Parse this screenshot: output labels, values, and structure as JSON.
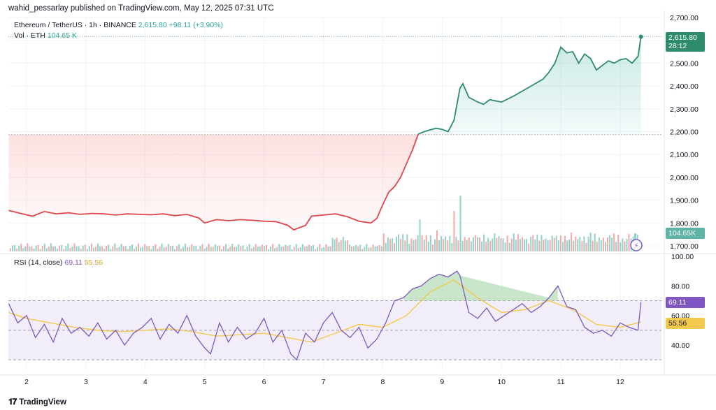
{
  "header": {
    "publisher": "wahid_pessarlay published on TradingView.com, May 12, 2025 07:31 UTC"
  },
  "legend": {
    "symbol": "Ethereum / TetherUS · 1h · BINANCE",
    "price": "2,615.80",
    "change": "+98.11 (+3.90%)",
    "vol_label": "Vol · ETH",
    "vol_value": "104.65 K",
    "rsi_label": "RSI (14, close)",
    "rsi_value": "69.11",
    "rsi_ma": "55.56"
  },
  "price_axis": [
    "2,700.00",
    "2,600.00",
    "2,500.00",
    "2,400.00",
    "2,300.00",
    "2,200.00",
    "2,100.00",
    "2,000.00",
    "1,900.00",
    "1,800.00",
    "1,700.00"
  ],
  "rsi_axis": [
    "100.00",
    "80.00",
    "60.00",
    "40.00"
  ],
  "x_axis": [
    "2",
    "3",
    "4",
    "5",
    "6",
    "7",
    "8",
    "9",
    "10",
    "11",
    "12"
  ],
  "tags": {
    "price": "2,615.80",
    "countdown": "28:12",
    "volume": "104.65K",
    "rsi": "69.11",
    "rsi_ma": "55.56"
  },
  "footer": {
    "brand": "TradingView"
  },
  "colors": {
    "up": "#26a69a",
    "down": "#ef5350",
    "rsi": "#7e57c2",
    "rsi_ma": "#f2c94c",
    "green_line": "#2e8b6e",
    "red_line": "#e0474c"
  },
  "chart_data": [
    {
      "type": "line",
      "title": "Ethereum / TetherUS · 1h · BINANCE",
      "x_ticks": [
        "2",
        "3",
        "4",
        "5",
        "6",
        "7",
        "8",
        "9",
        "10",
        "11",
        "12"
      ],
      "ylim": [
        1680,
        2720
      ],
      "baseline": 2187,
      "x": [
        1.7,
        1.9,
        2.1,
        2.3,
        2.5,
        2.7,
        2.9,
        3.1,
        3.3,
        3.5,
        3.7,
        3.9,
        4.1,
        4.3,
        4.5,
        4.7,
        4.9,
        5.0,
        5.2,
        5.4,
        5.6,
        5.8,
        6.0,
        6.2,
        6.4,
        6.5,
        6.7,
        6.8,
        7.0,
        7.2,
        7.4,
        7.6,
        7.8,
        7.9,
        8.0,
        8.1,
        8.2,
        8.3,
        8.4,
        8.5,
        8.6,
        8.7,
        8.8,
        8.9,
        9.0,
        9.1,
        9.2,
        9.3,
        9.35,
        9.45,
        9.6,
        9.7,
        9.8,
        10.0,
        10.2,
        10.3,
        10.5,
        10.7,
        10.8,
        10.9,
        11.0,
        11.1,
        11.2,
        11.3,
        11.4,
        11.5,
        11.6,
        11.7,
        11.8,
        11.9,
        12.0,
        12.1,
        12.2,
        12.3,
        12.35
      ],
      "y": [
        1855,
        1842,
        1830,
        1850,
        1840,
        1845,
        1838,
        1842,
        1840,
        1835,
        1840,
        1838,
        1836,
        1840,
        1832,
        1838,
        1822,
        1800,
        1815,
        1810,
        1815,
        1812,
        1808,
        1806,
        1790,
        1770,
        1790,
        1830,
        1835,
        1840,
        1828,
        1808,
        1800,
        1820,
        1880,
        1935,
        1960,
        2000,
        2060,
        2120,
        2190,
        2200,
        2208,
        2215,
        2210,
        2200,
        2250,
        2390,
        2410,
        2350,
        2330,
        2320,
        2340,
        2330,
        2355,
        2370,
        2400,
        2430,
        2460,
        2500,
        2570,
        2545,
        2550,
        2500,
        2540,
        2520,
        2470,
        2490,
        2510,
        2500,
        2515,
        2520,
        2500,
        2530,
        2615.8
      ],
      "volume": {
        "name": "Vol · ETH",
        "last": 104.65
      }
    },
    {
      "type": "line",
      "title": "RSI (14, close)",
      "ylim": [
        20,
        100
      ],
      "levels": [
        70,
        50,
        30
      ],
      "series": [
        {
          "name": "RSI",
          "x": [
            1.7,
            1.85,
            2.0,
            2.15,
            2.3,
            2.45,
            2.6,
            2.75,
            2.9,
            3.05,
            3.2,
            3.35,
            3.5,
            3.65,
            3.8,
            3.95,
            4.1,
            4.25,
            4.4,
            4.55,
            4.7,
            4.85,
            5.0,
            5.1,
            5.25,
            5.4,
            5.55,
            5.7,
            5.85,
            6.0,
            6.15,
            6.3,
            6.45,
            6.55,
            6.7,
            6.85,
            7.0,
            7.15,
            7.3,
            7.45,
            7.6,
            7.75,
            7.9,
            8.05,
            8.2,
            8.35,
            8.5,
            8.65,
            8.8,
            8.95,
            9.1,
            9.25,
            9.3,
            9.45,
            9.6,
            9.75,
            9.9,
            10.05,
            10.2,
            10.35,
            10.5,
            10.65,
            10.8,
            10.95,
            11.1,
            11.25,
            11.4,
            11.55,
            11.7,
            11.85,
            12.0,
            12.15,
            12.3,
            12.35
          ],
          "y": [
            68,
            55,
            60,
            45,
            54,
            42,
            58,
            48,
            52,
            46,
            55,
            44,
            50,
            40,
            48,
            52,
            58,
            44,
            54,
            48,
            60,
            46,
            38,
            34,
            55,
            42,
            52,
            44,
            48,
            58,
            42,
            50,
            34,
            30,
            48,
            42,
            55,
            62,
            50,
            45,
            52,
            38,
            44,
            55,
            70,
            72,
            78,
            80,
            85,
            88,
            86,
            90,
            87,
            62,
            58,
            65,
            56,
            60,
            64,
            68,
            62,
            66,
            72,
            80,
            66,
            64,
            52,
            48,
            50,
            46,
            55,
            52,
            50,
            69.11
          ]
        },
        {
          "name": "RSI MA",
          "x": [
            1.7,
            2.0,
            2.4,
            2.8,
            3.2,
            3.6,
            4.0,
            4.4,
            4.8,
            5.2,
            5.6,
            6.0,
            6.4,
            6.8,
            7.2,
            7.6,
            8.0,
            8.4,
            8.8,
            9.2,
            9.6,
            10.0,
            10.4,
            10.8,
            11.2,
            11.6,
            12.0,
            12.35
          ],
          "y": [
            62,
            58,
            55,
            52,
            50,
            49,
            50,
            51,
            49,
            46,
            47,
            48,
            45,
            42,
            48,
            54,
            52,
            60,
            76,
            84,
            72,
            62,
            64,
            70,
            64,
            54,
            52,
            55.56
          ]
        }
      ]
    }
  ]
}
